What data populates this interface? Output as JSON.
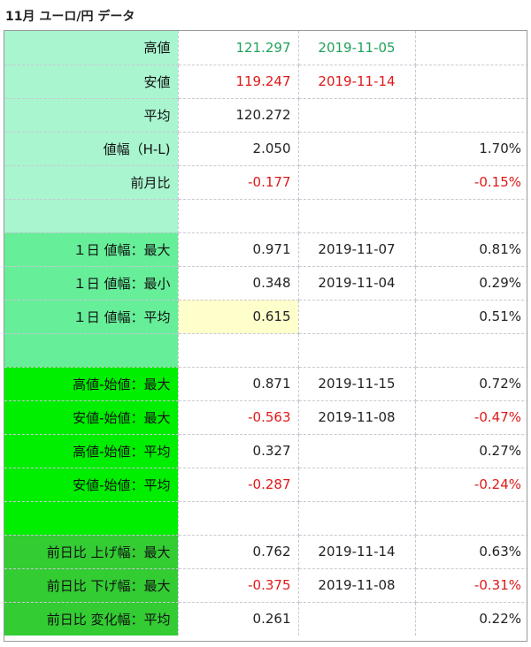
{
  "title": "11月 ユーロ/円 データ",
  "colors": {
    "green_text": "#22a05a",
    "red_text": "#e01818",
    "black_text": "#222222",
    "bg_a": "#a8f5cf",
    "bg_b": "#66ee99",
    "bg_c": "#00ee00",
    "bg_d": "#33cc33",
    "highlight": "#ffffcc"
  },
  "rows": [
    {
      "label": "高値",
      "value": "121.297",
      "date": "2019-11-05",
      "pct": "",
      "color": "green"
    },
    {
      "label": "安値",
      "value": "119.247",
      "date": "2019-11-14",
      "pct": "",
      "color": "red"
    },
    {
      "label": "平均",
      "value": "120.272",
      "date": "",
      "pct": ""
    },
    {
      "label": "値幅（H-L)",
      "value": "2.050",
      "date": "",
      "pct": "1.70%"
    },
    {
      "label": "前月比",
      "value": "-0.177",
      "date": "",
      "pct": "-0.15%"
    },
    {
      "label": "",
      "value": "",
      "date": "",
      "pct": ""
    },
    {
      "label": "１日 値幅：最大",
      "value": "0.971",
      "date": "2019-11-07",
      "pct": "0.81%"
    },
    {
      "label": "１日 値幅：最小",
      "value": "0.348",
      "date": "2019-11-04",
      "pct": "0.29%"
    },
    {
      "label": "１日 値幅：平均",
      "value": "0.615",
      "date": "",
      "pct": "0.51%"
    },
    {
      "label": "",
      "value": "",
      "date": "",
      "pct": ""
    },
    {
      "label": "高値-始値：最大",
      "value": "0.871",
      "date": "2019-11-15",
      "pct": "0.72%"
    },
    {
      "label": "安値-始値：最大",
      "value": "-0.563",
      "date": "2019-11-08",
      "pct": "-0.47%"
    },
    {
      "label": "高値-始値：平均",
      "value": "0.327",
      "date": "",
      "pct": "0.27%"
    },
    {
      "label": "安値-始値：平均",
      "value": "-0.287",
      "date": "",
      "pct": "-0.24%"
    },
    {
      "label": "",
      "value": "",
      "date": "",
      "pct": ""
    },
    {
      "label": "前日比 上げ幅：最大",
      "value": "0.762",
      "date": "2019-11-14",
      "pct": "0.63%"
    },
    {
      "label": "前日比 下げ幅：最大",
      "value": "-0.375",
      "date": "2019-11-08",
      "pct": "-0.31%"
    },
    {
      "label": "前日比 変化幅：平均",
      "value": "0.261",
      "date": "",
      "pct": "0.22%"
    }
  ]
}
